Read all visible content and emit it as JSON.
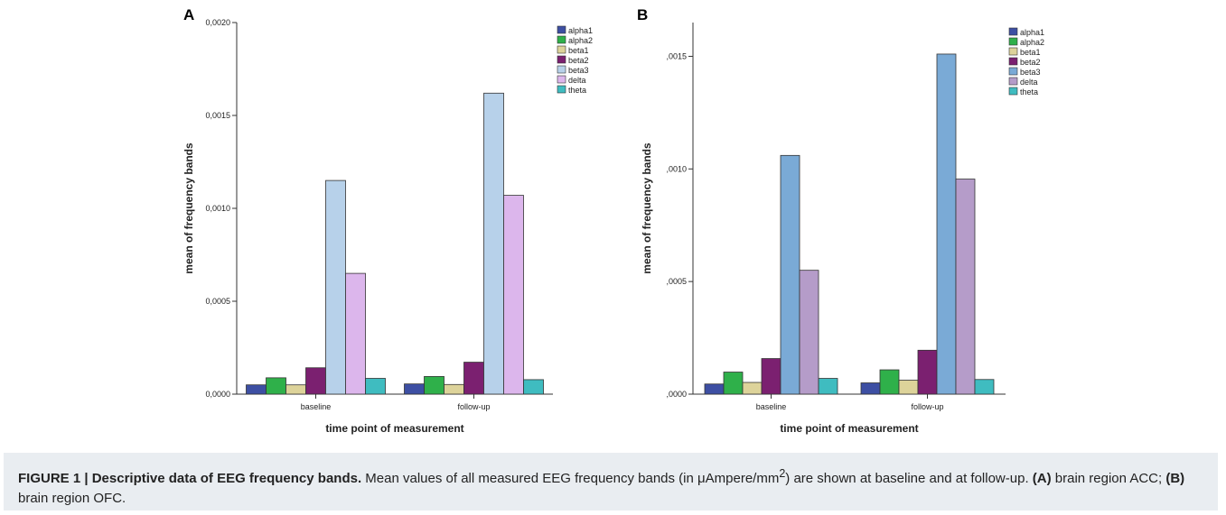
{
  "colors": {
    "alpha1": "#3d4fa3",
    "alpha2": "#2fb04a",
    "beta1": "#ddd39a",
    "beta2": "#7b2070",
    "beta3_a": "#b7d1ea",
    "delta_a": "#dcb6ec",
    "beta3_b": "#7aaad6",
    "delta_b": "#b59cc9",
    "theta": "#3fbcc0",
    "caption_bg": "#e9edf1"
  },
  "caption": {
    "figure_label": "FIGURE 1 | Descriptive data of EEG frequency bands.",
    "text1": " Mean values of all measured EEG frequency bands (in μAmpere/mm",
    "superscript": "2",
    "text2": ") are shown at baseline and at follow-up. ",
    "label_a": "(A)",
    "text_a": " brain region ACC; ",
    "label_b": "(B)",
    "text_b": " brain region OFC."
  },
  "chart_data": [
    {
      "panel": "A",
      "type": "bar",
      "categories": [
        "baseline",
        "follow-up"
      ],
      "xlabel": "time point of measurement",
      "ylabel": "mean of frequency bands",
      "ylim": [
        0,
        0.002
      ],
      "yticks": [
        0,
        0.0005,
        0.001,
        0.0015,
        0.002
      ],
      "ytick_labels": [
        "0,0000",
        "0,0005",
        "0,0010",
        "0,0015",
        "0,0020"
      ],
      "legend_position": "top-right",
      "series": [
        {
          "name": "alpha1",
          "color": "#3d4fa3",
          "values": [
            5e-05,
            5.5e-05
          ]
        },
        {
          "name": "alpha2",
          "color": "#2fb04a",
          "values": [
            8.8e-05,
            9.5e-05
          ]
        },
        {
          "name": "beta1",
          "color": "#ddd39a",
          "values": [
            5e-05,
            5.2e-05
          ]
        },
        {
          "name": "beta2",
          "color": "#7b2070",
          "values": [
            0.000142,
            0.000172
          ]
        },
        {
          "name": "beta3",
          "color": "#b7d1ea",
          "values": [
            0.00115,
            0.00162
          ]
        },
        {
          "name": "delta",
          "color": "#dcb6ec",
          "values": [
            0.00065,
            0.00107
          ]
        },
        {
          "name": "theta",
          "color": "#3fbcc0",
          "values": [
            8.5e-05,
            7.8e-05
          ]
        }
      ]
    },
    {
      "panel": "B",
      "type": "bar",
      "categories": [
        "baseline",
        "follow-up"
      ],
      "xlabel": "time point of measurement",
      "ylabel": "mean of frequency bands",
      "ylim": [
        0,
        0.00165
      ],
      "yticks": [
        0,
        0.0005,
        0.001,
        0.0015
      ],
      "ytick_labels": [
        ",0000",
        ",0005",
        ",0010",
        ",0015"
      ],
      "legend_position": "top-right",
      "series": [
        {
          "name": "alpha1",
          "color": "#3d4fa3",
          "values": [
            4.5e-05,
            5e-05
          ]
        },
        {
          "name": "alpha2",
          "color": "#2fb04a",
          "values": [
            9.8e-05,
            0.000108
          ]
        },
        {
          "name": "beta1",
          "color": "#ddd39a",
          "values": [
            5.2e-05,
            6.2e-05
          ]
        },
        {
          "name": "beta2",
          "color": "#7b2070",
          "values": [
            0.000158,
            0.000195
          ]
        },
        {
          "name": "beta3",
          "color": "#7aaad6",
          "values": [
            0.00106,
            0.00151
          ]
        },
        {
          "name": "delta",
          "color": "#b59cc9",
          "values": [
            0.00055,
            0.000955
          ]
        },
        {
          "name": "theta",
          "color": "#3fbcc0",
          "values": [
            7e-05,
            6.5e-05
          ]
        }
      ]
    }
  ]
}
